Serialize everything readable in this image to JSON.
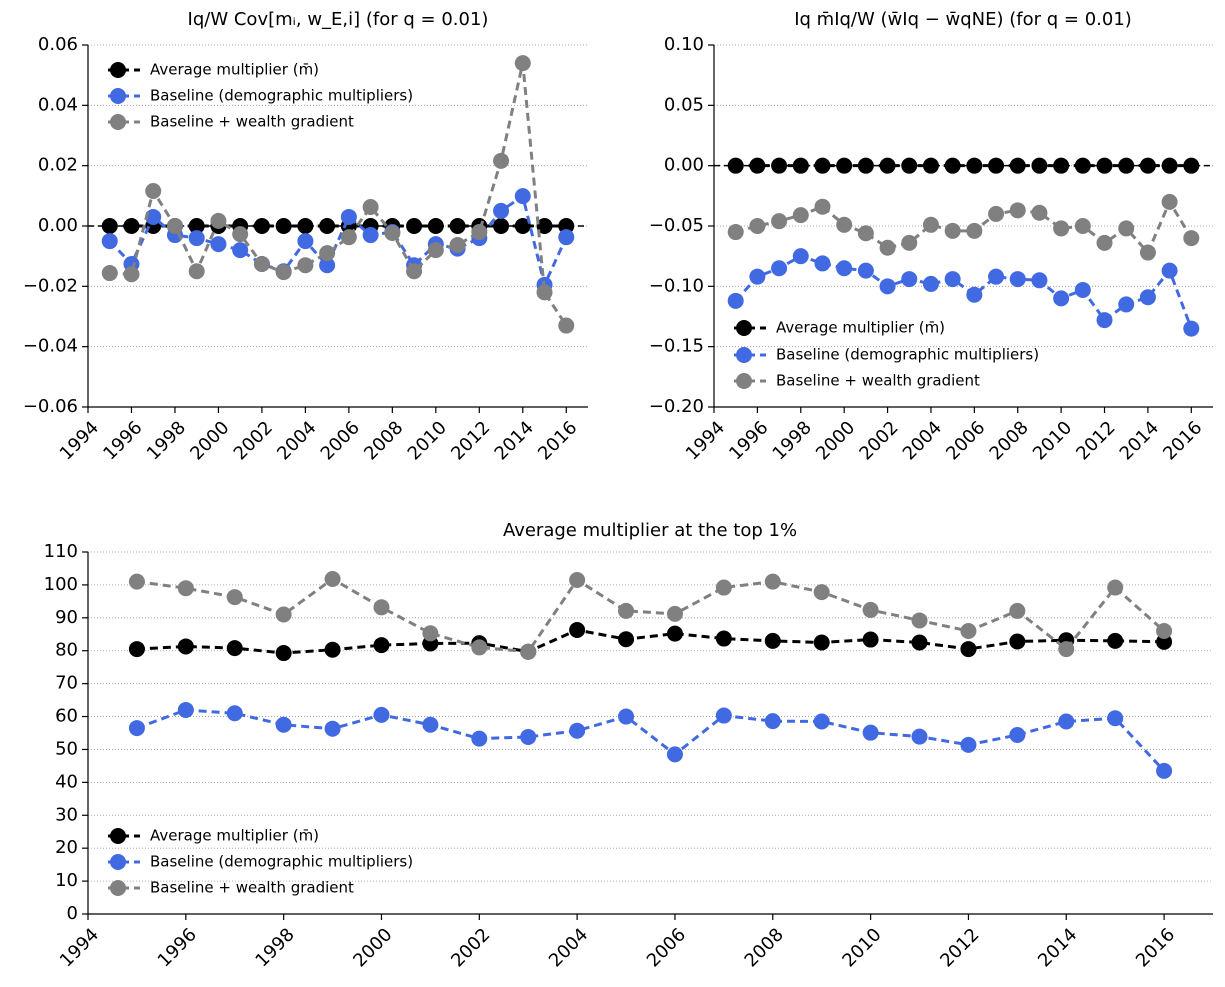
{
  "chart_data": [
    {
      "type": "line",
      "title": "Iq/W Cov[mᵢ, w_E,i] (for q = 0.01)",
      "x": [
        1995,
        1996,
        1997,
        1998,
        1999,
        2000,
        2001,
        2002,
        2003,
        2004,
        2005,
        2006,
        2007,
        2008,
        2009,
        2010,
        2011,
        2012,
        2013,
        2014,
        2015,
        2016
      ],
      "series": [
        {
          "name": "Average multiplier (m̄)",
          "color": "#000000",
          "values": [
            0,
            0,
            0,
            0,
            0,
            0,
            0,
            0,
            0,
            0,
            0,
            0,
            0,
            0,
            0,
            0,
            0,
            0,
            0,
            0,
            0,
            0
          ]
        },
        {
          "name": "Baseline (demographic multipliers)",
          "color": "#4169e1",
          "values": [
            -0.005,
            -0.0126,
            0.003,
            -0.003,
            -0.004,
            -0.006,
            -0.008,
            -0.0126,
            -0.015,
            -0.005,
            -0.013,
            0.003,
            -0.003,
            -0.002,
            -0.013,
            -0.006,
            -0.0075,
            -0.004,
            0.005,
            0.0099,
            -0.0195,
            -0.0037
          ]
        },
        {
          "name": "Baseline + wealth gradient",
          "color": "#808080",
          "values": [
            -0.0156,
            -0.016,
            0.0116,
            0,
            -0.015,
            0.0017,
            -0.0027,
            -0.0126,
            -0.0153,
            -0.013,
            -0.009,
            -0.0037,
            0.0063,
            -0.0023,
            -0.015,
            -0.008,
            -0.0063,
            -0.002,
            0.0216,
            0.054,
            -0.022,
            -0.033
          ]
        }
      ],
      "xlim": [
        1994,
        2017
      ],
      "xticks": [
        1994,
        1996,
        1998,
        2000,
        2002,
        2004,
        2006,
        2008,
        2010,
        2012,
        2014,
        2016
      ],
      "ylim": [
        -0.06,
        0.06
      ],
      "yticks": [
        {
          "value": -0.06,
          "label": "−0.06"
        },
        {
          "value": -0.04,
          "label": "−0.04"
        },
        {
          "value": -0.02,
          "label": "−0.02"
        },
        {
          "value": 0,
          "label": "0.00"
        },
        {
          "value": 0.02,
          "label": "0.02"
        },
        {
          "value": 0.04,
          "label": "0.04"
        },
        {
          "value": 0.06,
          "label": "0.06"
        }
      ],
      "axhline": 0,
      "grid": true,
      "legend": "upper left"
    },
    {
      "type": "line",
      "title": "Iq m̄Iq/W (w̄Iq − w̄qNE) (for q = 0.01)",
      "x": [
        1995,
        1996,
        1997,
        1998,
        1999,
        2000,
        2001,
        2002,
        2003,
        2004,
        2005,
        2006,
        2007,
        2008,
        2009,
        2010,
        2011,
        2012,
        2013,
        2014,
        2015,
        2016
      ],
      "series": [
        {
          "name": "Average multiplier (m̄)",
          "color": "#000000",
          "values": [
            0,
            0,
            0,
            0,
            0,
            0,
            0,
            0,
            0,
            0,
            0,
            0,
            0,
            0,
            0,
            0,
            0,
            0,
            0,
            0,
            0,
            0
          ]
        },
        {
          "name": "Baseline (demographic multipliers)",
          "color": "#4169e1",
          "values": [
            -0.112,
            -0.092,
            -0.085,
            -0.075,
            -0.081,
            -0.085,
            -0.087,
            -0.1,
            -0.094,
            -0.098,
            -0.094,
            -0.107,
            -0.092,
            -0.094,
            -0.095,
            -0.11,
            -0.103,
            -0.128,
            -0.115,
            -0.109,
            -0.087,
            -0.135
          ]
        },
        {
          "name": "Baseline + wealth gradient",
          "color": "#808080",
          "values": [
            -0.055,
            -0.05,
            -0.046,
            -0.041,
            -0.034,
            -0.049,
            -0.056,
            -0.068,
            -0.064,
            -0.049,
            -0.054,
            -0.054,
            -0.04,
            -0.037,
            -0.039,
            -0.052,
            -0.05,
            -0.064,
            -0.052,
            -0.072,
            -0.03,
            -0.06
          ]
        }
      ],
      "xlim": [
        1994,
        2017
      ],
      "xticks": [
        1994,
        1996,
        1998,
        2000,
        2002,
        2004,
        2006,
        2008,
        2010,
        2012,
        2014,
        2016
      ],
      "ylim": [
        -0.2,
        0.1
      ],
      "yticks": [
        {
          "value": -0.2,
          "label": "−0.20"
        },
        {
          "value": -0.15,
          "label": "−0.15"
        },
        {
          "value": -0.1,
          "label": "−0.10"
        },
        {
          "value": -0.05,
          "label": "−0.05"
        },
        {
          "value": 0,
          "label": "0.00"
        },
        {
          "value": 0.05,
          "label": "0.05"
        },
        {
          "value": 0.1,
          "label": "0.10"
        }
      ],
      "axhline": 0,
      "grid": true,
      "legend": "lower left"
    },
    {
      "type": "line",
      "title": "Average multiplier at the top 1%",
      "x": [
        1995,
        1996,
        1997,
        1998,
        1999,
        2000,
        2001,
        2002,
        2003,
        2004,
        2005,
        2006,
        2007,
        2008,
        2009,
        2010,
        2011,
        2012,
        2013,
        2014,
        2015,
        2016
      ],
      "series": [
        {
          "name": "Average multiplier (m̄)",
          "color": "#000000",
          "values": [
            80.5,
            81.3,
            80.8,
            79.3,
            80.3,
            81.7,
            82.2,
            82.3,
            79.7,
            86.3,
            83.5,
            85.2,
            83.7,
            83,
            82.5,
            83.4,
            82.5,
            80.5,
            82.8,
            83.2,
            83,
            82.7
          ]
        },
        {
          "name": "Baseline (demographic multipliers)",
          "color": "#4169e1",
          "values": [
            56.5,
            62,
            61,
            57.5,
            56.3,
            60.5,
            57.5,
            53.3,
            53.8,
            55.7,
            60,
            48.5,
            60.3,
            58.6,
            58.5,
            55.1,
            53.9,
            51.4,
            54.4,
            58.5,
            59.5,
            43.5
          ]
        },
        {
          "name": "Baseline + wealth gradient",
          "color": "#808080",
          "values": [
            101,
            99,
            96.3,
            91,
            101.8,
            93.2,
            85.3,
            81,
            79.7,
            101.5,
            92.1,
            91.2,
            99.2,
            101,
            97.8,
            92.4,
            89.2,
            86,
            92.1,
            80.5,
            99.2,
            86
          ]
        }
      ],
      "xlim": [
        1994,
        2017
      ],
      "xticks": [
        1994,
        1996,
        1998,
        2000,
        2002,
        2004,
        2006,
        2008,
        2010,
        2012,
        2014,
        2016
      ],
      "ylim": [
        0,
        110
      ],
      "yticks": [
        0,
        10,
        20,
        30,
        40,
        50,
        60,
        70,
        80,
        90,
        100,
        110
      ],
      "grid": true,
      "legend": "lower left"
    }
  ]
}
